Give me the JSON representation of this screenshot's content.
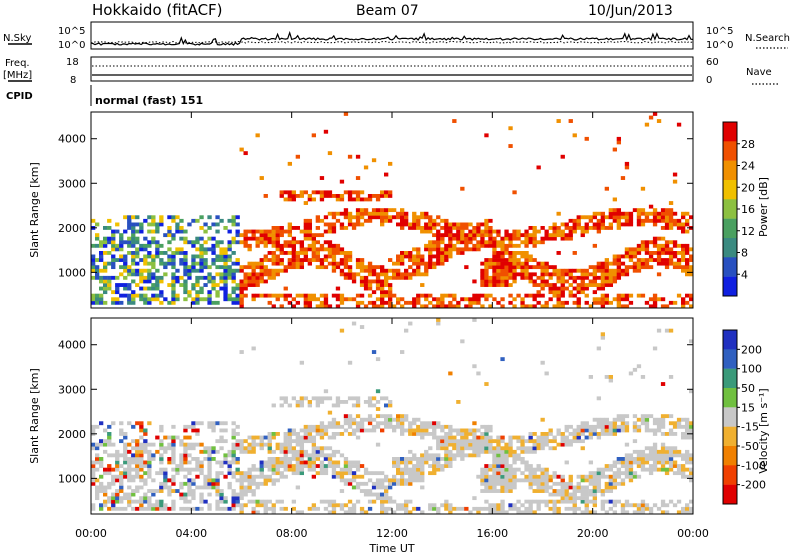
{
  "header": {
    "station": "Hokkaido (fitACF)",
    "beam": "Beam 07",
    "date": "10/Jun/2013"
  },
  "panels": {
    "nsky_label": "N.Sky",
    "nsky_ticks": [
      "10^5",
      "10^0"
    ],
    "nsearch_label": "N.Search",
    "freq_label": "Freq.",
    "freq_unit": "[MHz]",
    "freq_ticks": [
      "18",
      "8"
    ],
    "nave_label": "Nave",
    "nave_ticks": [
      "60",
      "0"
    ],
    "cpid_label": "CPID",
    "cpid_value": "normal (fast) 151"
  },
  "colors": {
    "power": [
      "#1020e0",
      "#2850c0",
      "#3a8a80",
      "#4aa060",
      "#8cc040",
      "#f0c000",
      "#f09000",
      "#f05000",
      "#e00000"
    ],
    "velocity": [
      "#2030c0",
      "#3060c0",
      "#3a9a7a",
      "#70c040",
      "#c8c8c8",
      "#f0b030",
      "#f08000",
      "#f04000",
      "#e00000"
    ]
  },
  "chart_data": [
    {
      "type": "heatmap",
      "title": "",
      "quantity": "Power",
      "xlabel": "Time UT",
      "ylabel": "Slant Range [km]",
      "x_ticks": [
        "00:00",
        "04:00",
        "08:00",
        "12:00",
        "16:00",
        "20:00",
        "00:00"
      ],
      "y_ticks": [
        1000,
        2000,
        3000,
        4000
      ],
      "ylim": [
        200,
        4600
      ],
      "colorbar": {
        "label": "Power [dB]",
        "ticks": [
          4,
          8,
          12,
          16,
          20,
          24,
          28
        ],
        "range": [
          0,
          32
        ]
      }
    },
    {
      "type": "heatmap",
      "title": "",
      "quantity": "Velocity",
      "xlabel": "Time UT",
      "ylabel": "Slant Range [km]",
      "x_ticks": [
        "00:00",
        "04:00",
        "08:00",
        "12:00",
        "16:00",
        "20:00",
        "00:00"
      ],
      "y_ticks": [
        1000,
        2000,
        3000,
        4000
      ],
      "ylim": [
        200,
        4600
      ],
      "colorbar": {
        "label": "Velocity [m s⁻¹]",
        "ticks": [
          200,
          100,
          50,
          15,
          -15,
          -50,
          -100,
          -200
        ]
      }
    }
  ]
}
